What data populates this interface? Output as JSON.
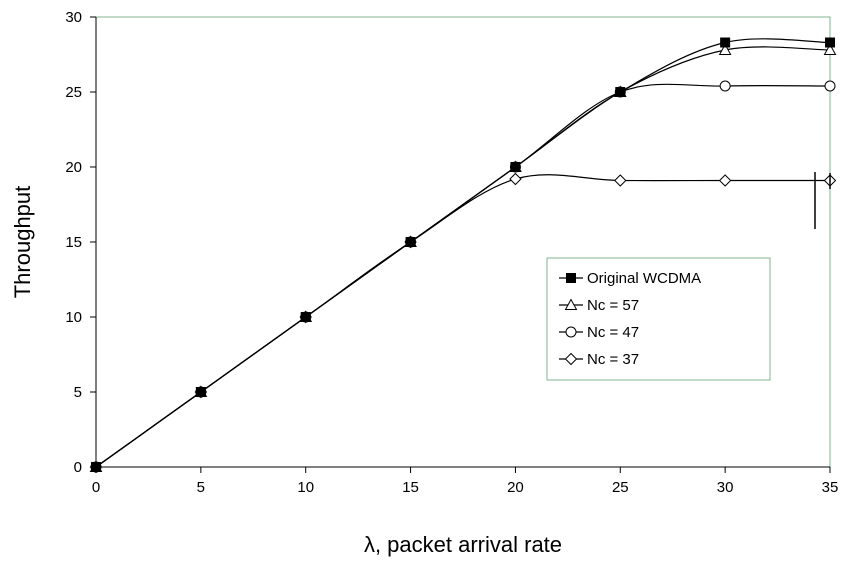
{
  "chart_data": {
    "type": "line",
    "xlabel": "λ, packet arrival rate",
    "ylabel": "Throughput",
    "xlim": [
      0,
      35
    ],
    "ylim": [
      0,
      30
    ],
    "xticks": [
      "0",
      "5",
      "10",
      "15",
      "20",
      "25",
      "30",
      "35"
    ],
    "yticks": [
      "0",
      "5",
      "10",
      "15",
      "20",
      "25",
      "30"
    ],
    "grid": false,
    "legend_position": "lower-right",
    "plot_border_color": "#7fb58f",
    "series": [
      {
        "name": "Original WCDMA",
        "marker": "filled-square",
        "x": [
          0,
          5,
          10,
          15,
          20,
          25,
          30,
          35
        ],
        "y": [
          0,
          5,
          10,
          15,
          20,
          25,
          28.3,
          28.3
        ]
      },
      {
        "name": "Nc = 57",
        "marker": "open-triangle",
        "x": [
          0,
          5,
          10,
          15,
          20,
          25,
          30,
          35
        ],
        "y": [
          0,
          5,
          10,
          15,
          20,
          25,
          27.8,
          27.8
        ]
      },
      {
        "name": "Nc = 47",
        "marker": "open-circle",
        "x": [
          0,
          5,
          10,
          15,
          20,
          25,
          30,
          35
        ],
        "y": [
          0,
          5,
          10,
          15,
          20,
          25,
          25.4,
          25.4
        ]
      },
      {
        "name": "Nc = 37",
        "marker": "open-diamond",
        "x": [
          0,
          5,
          10,
          15,
          20,
          25,
          30,
          35
        ],
        "y": [
          0,
          5,
          10,
          15,
          19.2,
          19.1,
          19.1,
          19.1
        ]
      }
    ]
  }
}
